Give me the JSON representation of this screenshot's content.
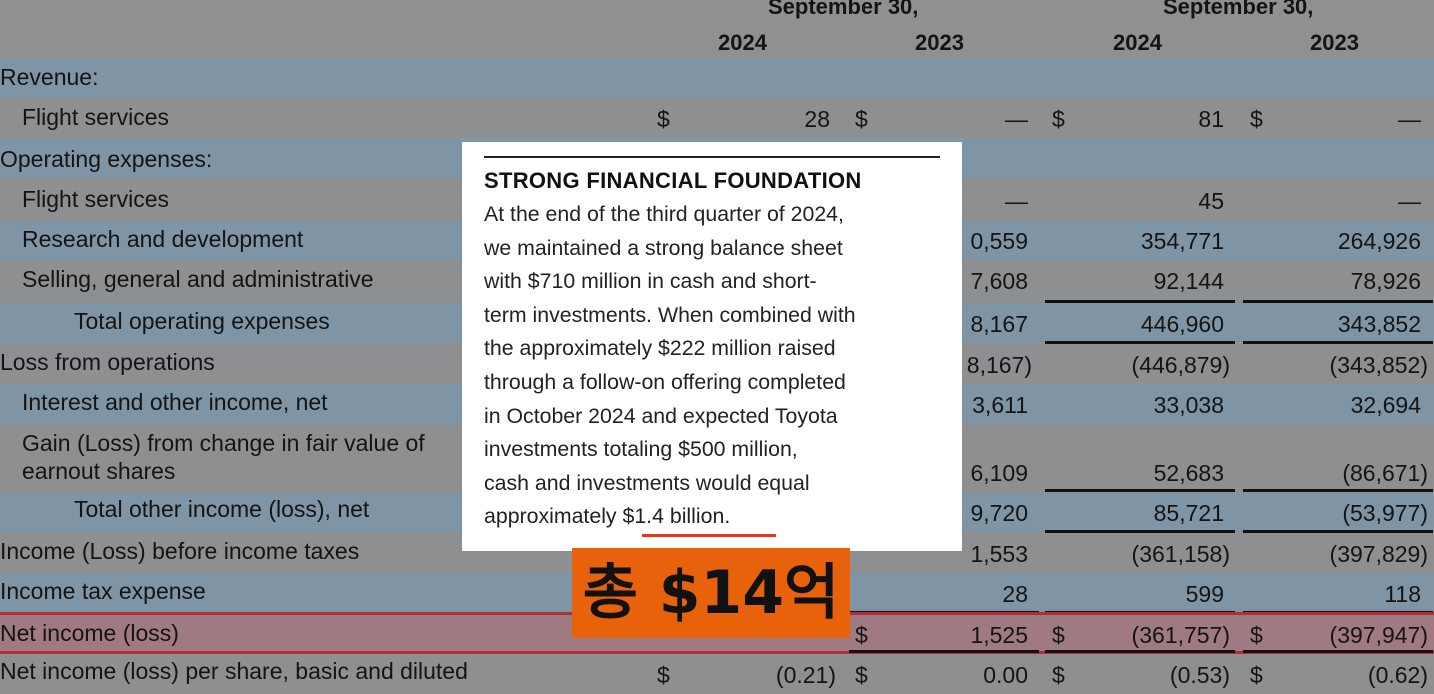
{
  "header": {
    "group_label_1": "September 30,",
    "group_label_2": "September 30,",
    "years": [
      "2024",
      "2023",
      "2024",
      "2023"
    ]
  },
  "rows": [
    {
      "label": "Revenue:"
    },
    {
      "label": "Flight services",
      "v1": "28",
      "v2": "—",
      "v3": "81",
      "v4": "—"
    },
    {
      "label": "Operating expenses:"
    },
    {
      "label": "Flight services",
      "v2": "—",
      "v3": "45",
      "v4": "—"
    },
    {
      "label": "Research and development",
      "v2": "0,559",
      "v3": "354,771",
      "v4": "264,926"
    },
    {
      "label": "Selling, general and administrative",
      "v2": "7,608",
      "v3": "92,144",
      "v4": "78,926"
    },
    {
      "label": "Total operating expenses",
      "v2": "8,167",
      "v3": "446,960",
      "v4": "343,852"
    },
    {
      "label": "Loss from operations",
      "v2": "8,167)",
      "v3": "(446,879)",
      "v4": "(343,852)"
    },
    {
      "label": "Interest and other income, net",
      "v2": "3,611",
      "v3": "33,038",
      "v4": "32,694"
    },
    {
      "label": "Gain (Loss) from change in fair value of",
      "label2": "earnout shares",
      "v2": "6,109",
      "v3": "52,683",
      "v4": "(86,671)"
    },
    {
      "label": "Total other income (loss), net",
      "v2": "9,720",
      "v3": "85,721",
      "v4": "(53,977)"
    },
    {
      "label": "Income (Loss) before income taxes",
      "v2": "1,553",
      "v3": "(361,158)",
      "v4": "(397,829)"
    },
    {
      "label": "Income tax expense",
      "v2": "28",
      "v3": "599",
      "v4": "118"
    },
    {
      "label": "Net income (loss)",
      "v2": "1,525",
      "v3": "(361,757)",
      "v4": "(397,947)"
    },
    {
      "label": "Net income (loss) per share, basic and diluted",
      "v1": "(0.21)",
      "v2": "0.00",
      "v3": "(0.53)",
      "v4": "(0.62)"
    }
  ],
  "currency_symbol": "$",
  "overlay": {
    "title": "STRONG FINANCIAL FOUNDATION",
    "lines": [
      "At the end of the third quarter of 2024,",
      "we maintained a strong balance sheet",
      "with $710 million in cash and short-",
      "term investments. When combined with",
      "the approximately $222 million raised",
      "through a follow-on offering completed",
      "in October 2024 and expected Toyota",
      "investments totaling $500 million,",
      "cash and investments would equal",
      "approximately $1.4 billion."
    ],
    "highlight_color": "#e8361c"
  },
  "badge": {
    "text": "총 $14억",
    "color": "#e8620c"
  }
}
